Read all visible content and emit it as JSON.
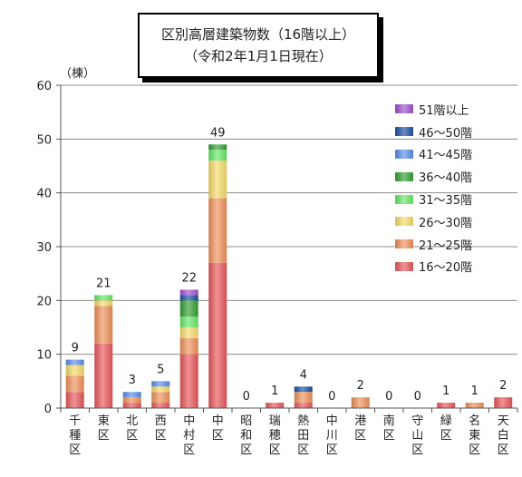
{
  "chart_data": {
    "type": "bar",
    "stacked": true,
    "title": "区別高層建築物数（16階以上）",
    "subtitle": "（令和2年1月1日現在）",
    "ylabel": "（棟）",
    "ylim": [
      0,
      60
    ],
    "yticks": [
      0,
      10,
      20,
      30,
      40,
      50,
      60
    ],
    "grid": true,
    "legend_position": "top-right",
    "categories": [
      "千種区",
      "東区",
      "北区",
      "西区",
      "中村区",
      "中区",
      "昭和区",
      "瑞穂区",
      "熱田区",
      "中川区",
      "港区",
      "南区",
      "守山区",
      "緑区",
      "名東区",
      "天白区"
    ],
    "totals": [
      9,
      21,
      3,
      5,
      22,
      49,
      0,
      1,
      4,
      0,
      2,
      0,
      0,
      1,
      1,
      2
    ],
    "series": [
      {
        "name": "16～20階",
        "color": "#e8585a",
        "values": [
          3,
          12,
          1,
          1,
          10,
          27,
          0,
          1,
          1,
          0,
          0,
          0,
          0,
          1,
          0,
          2
        ]
      },
      {
        "name": "21～25階",
        "color": "#f0925a",
        "values": [
          3,
          7,
          1,
          2,
          3,
          12,
          0,
          0,
          2,
          0,
          2,
          0,
          0,
          0,
          1,
          0
        ]
      },
      {
        "name": "26～30階",
        "color": "#f6dc6a",
        "values": [
          2,
          1,
          0,
          1,
          2,
          7,
          0,
          0,
          0,
          0,
          0,
          0,
          0,
          0,
          0,
          0
        ]
      },
      {
        "name": "31～35階",
        "color": "#66e866",
        "values": [
          0,
          1,
          0,
          0,
          2,
          2,
          0,
          0,
          0,
          0,
          0,
          0,
          0,
          0,
          0,
          0
        ]
      },
      {
        "name": "36～40階",
        "color": "#33a033",
        "values": [
          0,
          0,
          0,
          0,
          3,
          1,
          0,
          0,
          0,
          0,
          0,
          0,
          0,
          0,
          0,
          0
        ]
      },
      {
        "name": "41～45階",
        "color": "#5a8ee8",
        "values": [
          1,
          0,
          1,
          1,
          0,
          0,
          0,
          0,
          0,
          0,
          0,
          0,
          0,
          0,
          0,
          0
        ]
      },
      {
        "name": "46～50階",
        "color": "#1a4fa0",
        "values": [
          0,
          0,
          0,
          0,
          1,
          0,
          0,
          0,
          1,
          0,
          0,
          0,
          0,
          0,
          0,
          0
        ]
      },
      {
        "name": "51階以上",
        "color": "#a050d0",
        "values": [
          0,
          0,
          0,
          0,
          1,
          0,
          0,
          0,
          0,
          0,
          0,
          0,
          0,
          0,
          0,
          0
        ]
      }
    ]
  }
}
